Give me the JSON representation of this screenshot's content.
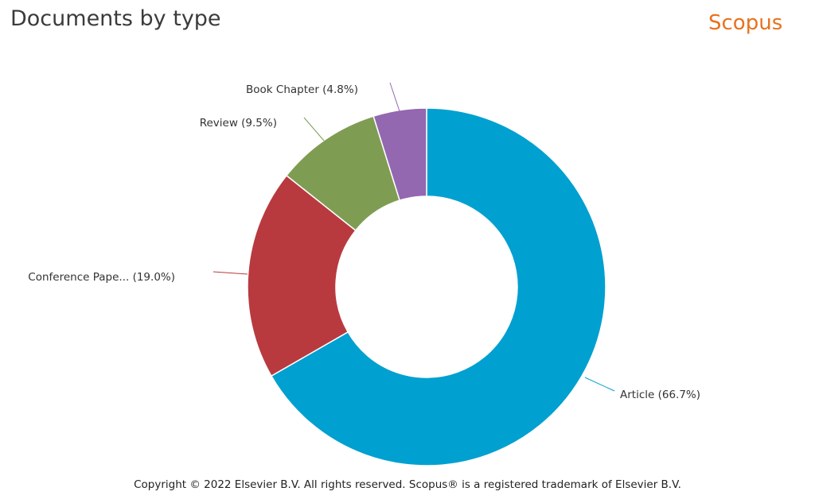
{
  "header": {
    "title": "Documents by type",
    "brand": "Scopus"
  },
  "footer": {
    "copyright": "Copyright © 2022 Elsevier B.V. All rights reserved. Scopus® is a registered trademark of Elsevier B.V."
  },
  "chart_data": {
    "type": "pie",
    "title": "Documents by type",
    "donut": true,
    "slices": [
      {
        "label": "Article (66.7%)",
        "value": 66.7,
        "color": "#00a0d0"
      },
      {
        "label": "Conference Pape... (19.0%)",
        "value": 19.0,
        "color": "#b83a3f"
      },
      {
        "label": "Review (9.5%)",
        "value": 9.5,
        "color": "#7e9d53"
      },
      {
        "label": "Book Chapter (4.8%)",
        "value": 4.8,
        "color": "#9467b1"
      }
    ]
  }
}
